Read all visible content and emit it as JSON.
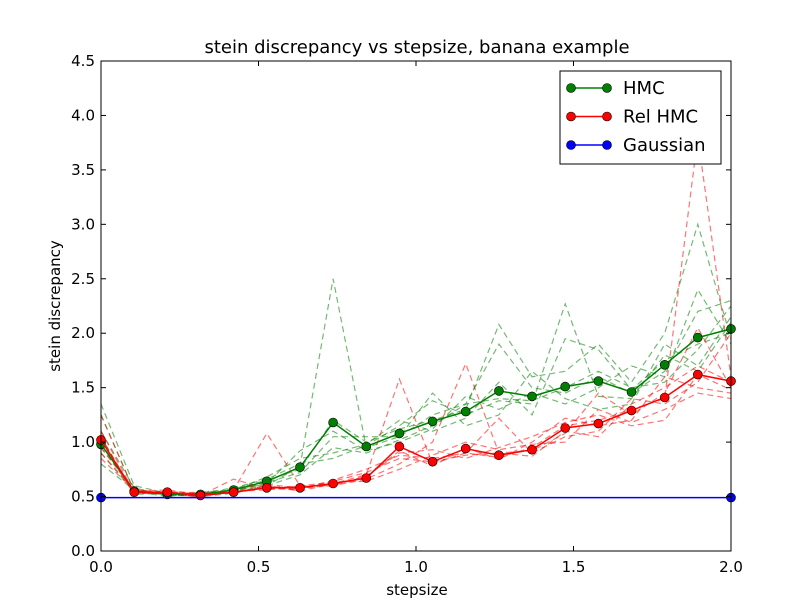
{
  "chart_data": {
    "type": "line",
    "title": "stein discrepancy vs stepsize, banana example",
    "xlabel": "stepsize",
    "ylabel": "stein discrepancy",
    "xlim": [
      0.0,
      2.0
    ],
    "ylim": [
      0.0,
      4.5
    ],
    "xticks": [
      "0.0",
      "0.5",
      "1.0",
      "1.5",
      "2.0"
    ],
    "yticks": [
      "0.0",
      "0.5",
      "1.0",
      "1.5",
      "2.0",
      "2.5",
      "3.0",
      "3.5",
      "4.0",
      "4.5"
    ],
    "legend_position": "top-right",
    "grid": false,
    "x": [
      0.0,
      0.1053,
      0.2105,
      0.3158,
      0.4211,
      0.5263,
      0.6316,
      0.7368,
      0.8421,
      0.9474,
      1.0526,
      1.1579,
      1.2632,
      1.3684,
      1.4737,
      1.5789,
      1.6842,
      1.7895,
      1.8947,
      2.0
    ],
    "series": [
      {
        "name": "HMC",
        "color": "#008000",
        "style": "solid",
        "marker": "circle",
        "values": [
          0.98,
          0.55,
          0.52,
          0.52,
          0.56,
          0.64,
          0.77,
          1.18,
          0.96,
          1.08,
          1.19,
          1.28,
          1.47,
          1.42,
          1.51,
          1.56,
          1.46,
          1.71,
          1.96,
          2.04
        ]
      },
      {
        "name": "Rel HMC",
        "color": "#ff0000",
        "style": "solid",
        "marker": "circle",
        "values": [
          1.02,
          0.54,
          0.54,
          0.51,
          0.54,
          0.58,
          0.58,
          0.62,
          0.67,
          0.96,
          0.82,
          0.94,
          0.88,
          0.93,
          1.13,
          1.17,
          1.29,
          1.41,
          1.62,
          1.56
        ]
      },
      {
        "name": "Gaussian",
        "color": "#0000ff",
        "style": "solid",
        "marker": "circle",
        "marker_at_ends_only": true,
        "values": [
          0.49,
          0.49,
          0.49,
          0.49,
          0.49,
          0.49,
          0.49,
          0.49,
          0.49,
          0.49,
          0.49,
          0.49,
          0.49,
          0.49,
          0.49,
          0.49,
          0.49,
          0.49,
          0.49,
          0.49
        ]
      }
    ],
    "runs": [
      {
        "series": "HMC",
        "color": "#008000",
        "values": [
          1.35,
          0.6,
          0.53,
          0.5,
          0.53,
          0.6,
          0.78,
          2.5,
          0.95,
          1.05,
          1.25,
          1.35,
          1.9,
          1.5,
          1.45,
          1.6,
          1.45,
          1.65,
          2.2,
          2.3
        ]
      },
      {
        "series": "HMC",
        "color": "#008000",
        "values": [
          1.1,
          0.58,
          0.51,
          0.51,
          0.57,
          0.65,
          0.75,
          1.2,
          1.0,
          1.12,
          1.2,
          1.3,
          2.08,
          1.6,
          1.65,
          1.9,
          1.55,
          2.0,
          3.0,
          1.95
        ]
      },
      {
        "series": "HMC",
        "color": "#008000",
        "values": [
          0.9,
          0.54,
          0.52,
          0.53,
          0.58,
          0.66,
          0.8,
          0.85,
          0.97,
          1.15,
          1.38,
          1.25,
          1.38,
          1.35,
          2.27,
          1.42,
          1.4,
          1.8,
          1.65,
          2.1
        ]
      },
      {
        "series": "HMC",
        "color": "#008000",
        "values": [
          0.8,
          0.56,
          0.53,
          0.52,
          0.55,
          0.62,
          0.92,
          1.1,
          0.92,
          1.0,
          1.12,
          1.42,
          1.3,
          1.45,
          1.35,
          1.5,
          1.7,
          1.6,
          2.4,
          1.9
        ]
      },
      {
        "series": "HMC",
        "color": "#008000",
        "values": [
          1.25,
          0.55,
          0.5,
          0.54,
          0.56,
          0.68,
          0.85,
          0.9,
          0.98,
          1.2,
          1.1,
          1.22,
          1.55,
          1.25,
          1.95,
          1.85,
          1.48,
          1.75,
          1.9,
          2.0
        ]
      },
      {
        "series": "HMC",
        "color": "#008000",
        "values": [
          0.95,
          0.57,
          0.52,
          0.5,
          0.55,
          0.63,
          0.72,
          1.05,
          1.05,
          1.05,
          1.45,
          1.15,
          1.25,
          1.65,
          1.4,
          1.3,
          1.35,
          1.9,
          1.7,
          2.15
        ]
      },
      {
        "series": "HMC",
        "color": "#008000",
        "values": [
          1.05,
          0.52,
          0.53,
          0.53,
          0.54,
          0.6,
          0.7,
          0.95,
          0.9,
          1.02,
          1.15,
          1.35,
          1.4,
          1.38,
          1.5,
          1.65,
          1.5,
          1.55,
          1.85,
          2.25
        ]
      },
      {
        "series": "Rel HMC",
        "color": "#ff0000",
        "values": [
          1.25,
          0.55,
          0.53,
          0.5,
          0.55,
          0.6,
          0.55,
          0.62,
          0.7,
          1.58,
          0.8,
          0.9,
          0.86,
          0.95,
          1.15,
          1.2,
          1.3,
          1.4,
          3.8,
          1.6
        ]
      },
      {
        "series": "Rel HMC",
        "color": "#ff0000",
        "values": [
          1.0,
          0.52,
          0.55,
          0.52,
          0.56,
          1.08,
          0.6,
          0.6,
          0.66,
          0.8,
          1.0,
          1.72,
          0.9,
          0.92,
          1.08,
          1.45,
          1.25,
          1.45,
          2.05,
          1.5
        ]
      },
      {
        "series": "Rel HMC",
        "color": "#ff0000",
        "values": [
          0.9,
          0.56,
          0.54,
          0.51,
          0.66,
          0.57,
          0.57,
          0.65,
          0.75,
          0.88,
          0.85,
          0.9,
          1.22,
          0.9,
          1.05,
          1.1,
          1.4,
          1.35,
          1.55,
          2.0
        ]
      },
      {
        "series": "Rel HMC",
        "color": "#ff0000",
        "values": [
          1.1,
          0.54,
          0.52,
          0.53,
          0.53,
          0.59,
          0.59,
          0.61,
          0.68,
          0.92,
          0.78,
          0.95,
          0.84,
          1.0,
          1.22,
          1.15,
          1.2,
          1.6,
          1.5,
          1.45
        ]
      },
      {
        "series": "Rel HMC",
        "color": "#ff0000",
        "values": [
          0.95,
          0.55,
          0.56,
          0.52,
          0.55,
          0.56,
          0.6,
          0.63,
          0.64,
          0.75,
          0.88,
          1.0,
          0.93,
          0.98,
          1.0,
          1.3,
          1.18,
          1.3,
          1.45,
          1.4
        ]
      },
      {
        "series": "Rel HMC",
        "color": "#ff0000",
        "values": [
          1.05,
          0.53,
          0.53,
          0.54,
          0.54,
          0.58,
          0.56,
          0.64,
          0.72,
          0.85,
          0.82,
          0.88,
          0.9,
          0.87,
          1.1,
          1.05,
          1.35,
          1.5,
          1.7,
          1.55
        ]
      },
      {
        "series": "Rel HMC",
        "color": "#ff0000",
        "values": [
          0.85,
          0.56,
          0.52,
          0.5,
          0.57,
          0.61,
          0.58,
          0.6,
          0.69,
          0.9,
          0.93,
          0.85,
          0.95,
          1.05,
          1.18,
          1.25,
          1.15,
          1.2,
          1.62,
          1.48
        ]
      }
    ]
  }
}
